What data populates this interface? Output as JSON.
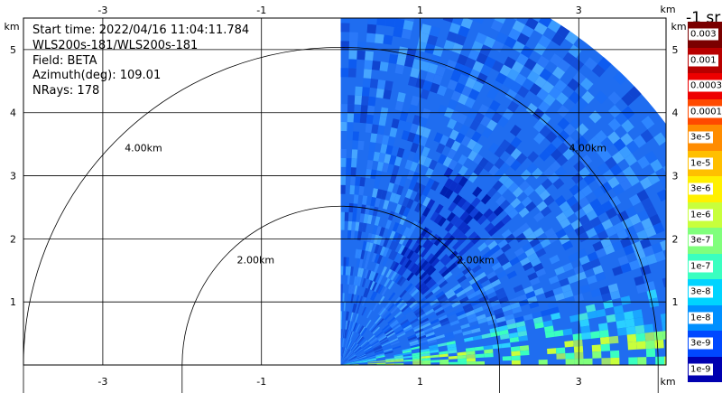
{
  "info": {
    "start_time": "Start time: 2022/04/16 11:04:11.784",
    "instrument": "WLS200s-181/WLS200s-181",
    "field": "Field: BETA",
    "azimuth": "Azimuth(deg): 109.01",
    "nrays": "NRays: 178"
  },
  "axes": {
    "unit": "km",
    "x_ticks": [
      "-3",
      "-1",
      "1",
      "3"
    ],
    "y_ticks": [
      "1",
      "2",
      "3",
      "4",
      "5"
    ],
    "xlim": [
      -4.0,
      4.1
    ],
    "ylim": [
      0,
      5.5
    ]
  },
  "rings": [
    {
      "radius": 2,
      "label": "2.00km"
    },
    {
      "radius": 4,
      "label": "4.00km"
    }
  ],
  "scan": {
    "azimuth_start_deg": 0,
    "azimuth_end_deg": 90,
    "max_range_km": 5.1
  },
  "colorbar": {
    "title": "-1 sr",
    "levels": [
      {
        "label": "0.003",
        "color": "#7a0000"
      },
      {
        "label": "0.001",
        "color": "#b80000"
      },
      {
        "label": "0.0003",
        "color": "#ee0000"
      },
      {
        "label": "0.0001",
        "color": "#ff4a00"
      },
      {
        "label": "3e-5",
        "color": "#ff8c00"
      },
      {
        "label": "1e-5",
        "color": "#ffbf00"
      },
      {
        "label": "3e-6",
        "color": "#fff000"
      },
      {
        "label": "1e-6",
        "color": "#c8ff3c"
      },
      {
        "label": "3e-7",
        "color": "#80ff7c"
      },
      {
        "label": "1e-7",
        "color": "#3affc0"
      },
      {
        "label": "3e-8",
        "color": "#00d4ff"
      },
      {
        "label": "1e-8",
        "color": "#0090ff"
      },
      {
        "label": "3e-9",
        "color": "#0048ff"
      },
      {
        "label": "1e-9",
        "color": "#0000b0"
      }
    ]
  }
}
